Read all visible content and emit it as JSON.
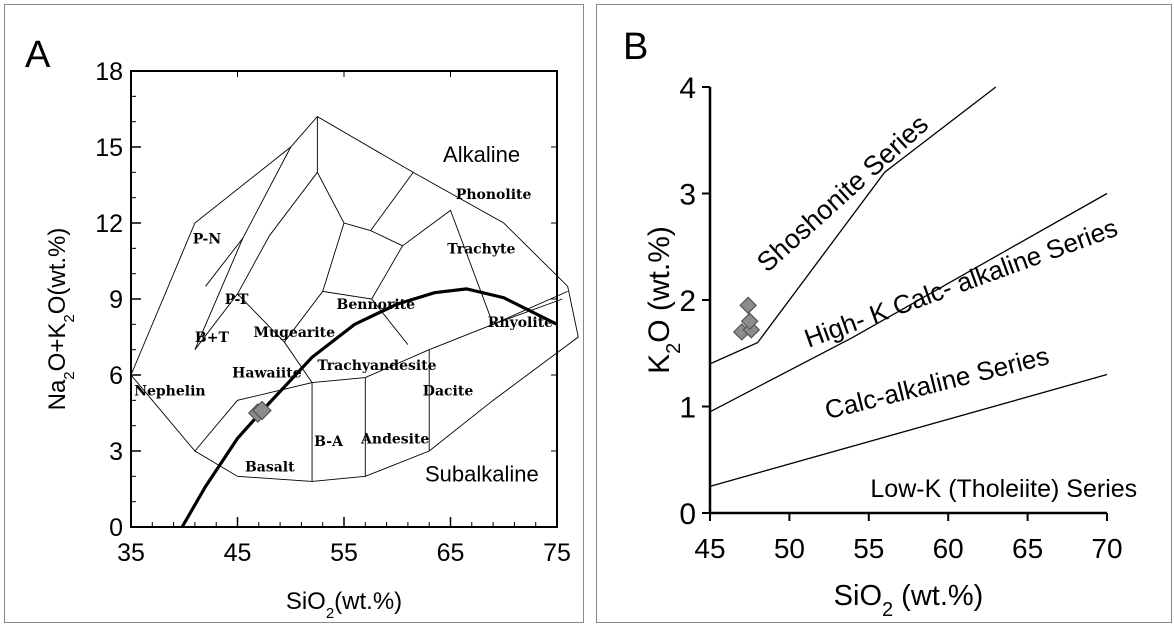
{
  "chart_data": [
    {
      "type": "scatter",
      "panel_label": "A",
      "xlabel": "SiO2(wt.%)",
      "ylabel": "Na2O+K2O(wt.%)",
      "xlim": [
        35,
        75
      ],
      "ylim": [
        0,
        18
      ],
      "xticks": [
        "35",
        "45",
        "55",
        "65",
        "75"
      ],
      "yticks": [
        "0",
        "3",
        "6",
        "9",
        "12",
        "15",
        "18"
      ],
      "region_labels": [
        "Alkaline",
        "Subalkaline"
      ],
      "field_labels": [
        "Phonolite",
        "P-N",
        "Trachyte",
        "P-T",
        "Bennorite",
        "Rhyolite",
        "B+T",
        "Mugearite",
        "Nephelin",
        "Hawaiite",
        "Trachyandesite",
        "Dacite",
        "B-A",
        "Andesite",
        "Basalt"
      ],
      "points": [
        {
          "x": 46.9,
          "y": 4.5
        },
        {
          "x": 47.3,
          "y": 4.6
        }
      ]
    },
    {
      "type": "scatter",
      "panel_label": "B",
      "xlabel": "SiO2 (wt.%)",
      "ylabel": "K2O (wt.%)",
      "xlim": [
        45,
        70
      ],
      "ylim": [
        0,
        4
      ],
      "xticks": [
        "45",
        "50",
        "55",
        "60",
        "65",
        "70"
      ],
      "yticks": [
        "0",
        "1",
        "2",
        "3",
        "4"
      ],
      "series_labels": [
        "Shoshonite Series",
        "High- K Calc- alkaline Series",
        "Calc-alkaline Series",
        "Low-K (Tholeiite) Series"
      ],
      "boundaries": [
        [
          {
            "x": 45,
            "y": 1.4
          },
          {
            "x": 48,
            "y": 1.6
          },
          {
            "x": 56,
            "y": 3.2
          },
          {
            "x": 63,
            "y": 4.0
          }
        ],
        [
          {
            "x": 45,
            "y": 0.95
          },
          {
            "x": 54,
            "y": 1.65
          },
          {
            "x": 70,
            "y": 3.0
          }
        ],
        [
          {
            "x": 45,
            "y": 0.25
          },
          {
            "x": 70,
            "y": 1.3
          }
        ]
      ],
      "points": [
        {
          "x": 47.4,
          "y": 1.95
        },
        {
          "x": 47.0,
          "y": 1.7
        },
        {
          "x": 47.6,
          "y": 1.72
        },
        {
          "x": 47.5,
          "y": 1.8
        }
      ]
    }
  ]
}
